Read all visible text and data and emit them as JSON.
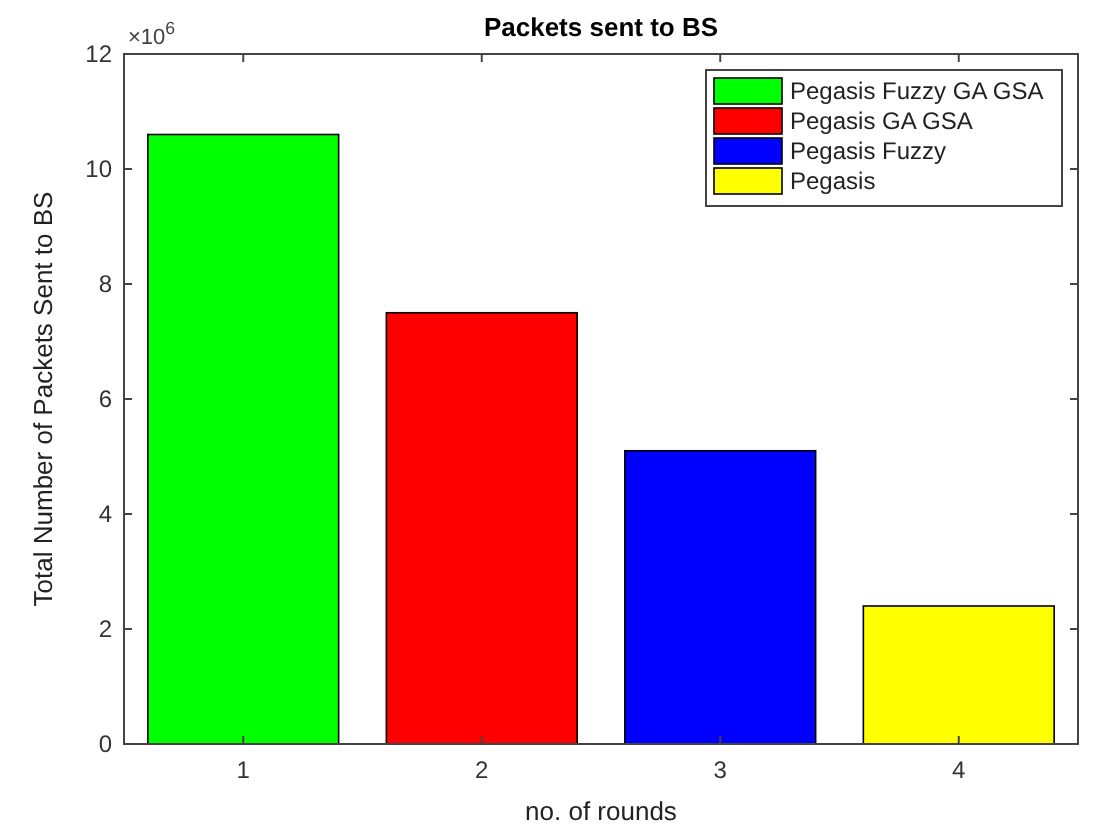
{
  "chart_data": {
    "type": "bar",
    "title": "Packets sent to BS",
    "xlabel": "no. of rounds",
    "ylabel": "Total Number of Packets Sent to BS",
    "categories": [
      "1",
      "2",
      "3",
      "4"
    ],
    "stacked": true,
    "series": [
      {
        "name": "Pegasis Fuzzy GA GSA",
        "color": "#00ff00",
        "values": [
          10.6,
          null,
          null,
          null
        ]
      },
      {
        "name": "Pegasis GA GSA",
        "color": "#ff0000",
        "values": [
          null,
          7.5,
          null,
          null
        ]
      },
      {
        "name": "Pegasis Fuzzy",
        "color": "#0000ff",
        "values": [
          null,
          null,
          5.1,
          null
        ]
      },
      {
        "name": "Pegasis",
        "color": "#ffff00",
        "values": [
          null,
          null,
          null,
          2.4
        ]
      }
    ],
    "ylim": [
      0,
      12
    ],
    "yticks": [
      0,
      2,
      4,
      6,
      8,
      10,
      12
    ],
    "annotations": [
      "×10$^{6}$"
    ],
    "grid": false,
    "legend": "top right"
  }
}
